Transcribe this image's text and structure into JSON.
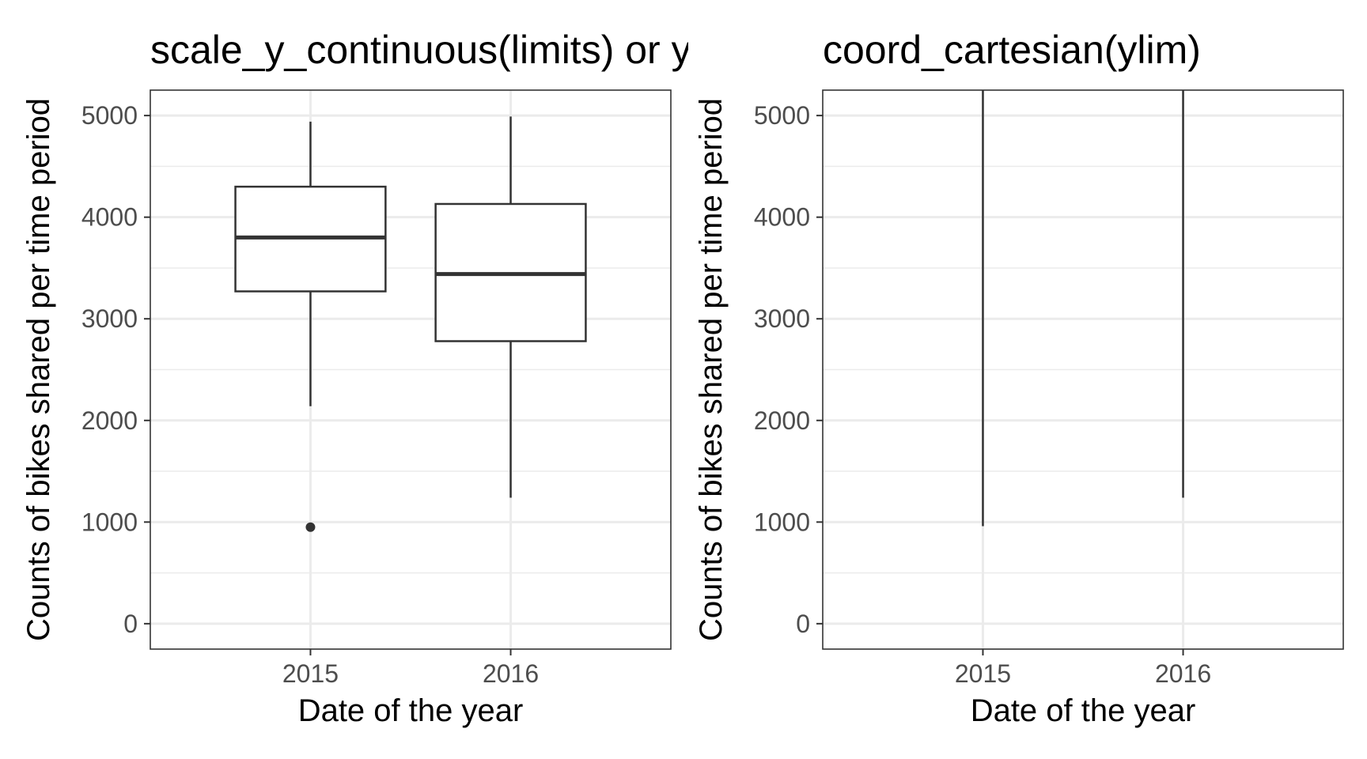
{
  "chart_data": [
    {
      "type": "box",
      "title": "scale_y_continuous(limits) or ylim",
      "xlabel": "Date of the year",
      "ylabel": "Counts of bikes shared per time period",
      "categories": [
        "2015",
        "2016"
      ],
      "y_ticks": [
        0,
        1000,
        2000,
        3000,
        4000,
        5000
      ],
      "ylim": [
        -250,
        5250
      ],
      "grid": true,
      "boxes": [
        {
          "category": "2015",
          "whisker_low": 2140,
          "q1": 3270,
          "median": 3800,
          "q3": 4300,
          "whisker_high": 4940,
          "outliers": [
            950
          ]
        },
        {
          "category": "2016",
          "whisker_low": 1240,
          "q1": 2780,
          "median": 3440,
          "q3": 4130,
          "whisker_high": 4990,
          "outliers": []
        }
      ]
    },
    {
      "type": "box",
      "title": "coord_cartesian(ylim)",
      "xlabel": "Date of the year",
      "ylabel": "Counts of bikes shared per time period",
      "categories": [
        "2015",
        "2016"
      ],
      "y_ticks": [
        0,
        1000,
        2000,
        3000,
        4000,
        5000
      ],
      "ylim": [
        -250,
        5250
      ],
      "grid": true,
      "boxes": [
        {
          "category": "2015",
          "whisker_low": 960,
          "whisker_high": 5250
        },
        {
          "category": "2016",
          "whisker_low": 1240,
          "whisker_high": 5250
        }
      ]
    }
  ]
}
